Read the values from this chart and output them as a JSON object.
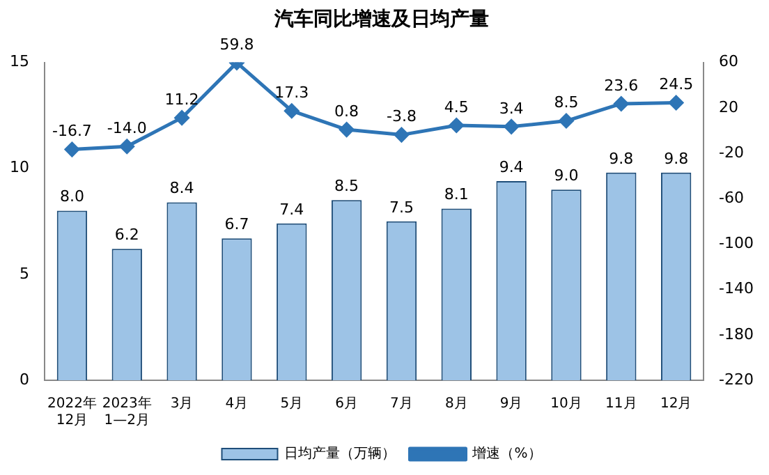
{
  "chart_data": {
    "type": "bar",
    "title": "汽车同比增速及日均产量",
    "categories": [
      "2022年\n12月",
      "2023年\n1—2月",
      "3月",
      "4月",
      "5月",
      "6月",
      "7月",
      "8月",
      "9月",
      "10月",
      "11月",
      "12月"
    ],
    "series": [
      {
        "name": "日均产量（万辆）",
        "color": "#9dc3e6",
        "values": [
          8.0,
          6.2,
          8.4,
          6.7,
          7.4,
          8.5,
          7.5,
          8.1,
          9.4,
          9.0,
          9.8,
          9.8
        ],
        "value_labels": [
          "8.0",
          "6.2",
          "8.4",
          "6.7",
          "7.4",
          "8.5",
          "7.5",
          "8.1",
          "9.4",
          "9.0",
          "9.8",
          "9.8"
        ]
      },
      {
        "name": "增速（%）",
        "type": "line",
        "axis": "y2",
        "color": "#2e75b6",
        "values": [
          -16.7,
          -14.0,
          11.2,
          59.8,
          17.3,
          0.8,
          -3.8,
          4.5,
          3.4,
          8.5,
          23.6,
          24.5
        ],
        "value_labels": [
          "-16.7",
          "-14.0",
          "11.2",
          "59.8",
          "17.3",
          "0.8",
          "-3.8",
          "4.5",
          "3.4",
          "8.5",
          "23.6",
          "24.5"
        ]
      }
    ],
    "ylim": [
      0,
      15
    ],
    "yticks": [
      0,
      5,
      10,
      15
    ],
    "y2lim": [
      -220,
      60
    ],
    "y2ticks": [
      60,
      20,
      -20,
      -60,
      -100,
      -140,
      -180,
      -220
    ],
    "legend": "bottom",
    "grid": false,
    "marker": "diamond"
  }
}
